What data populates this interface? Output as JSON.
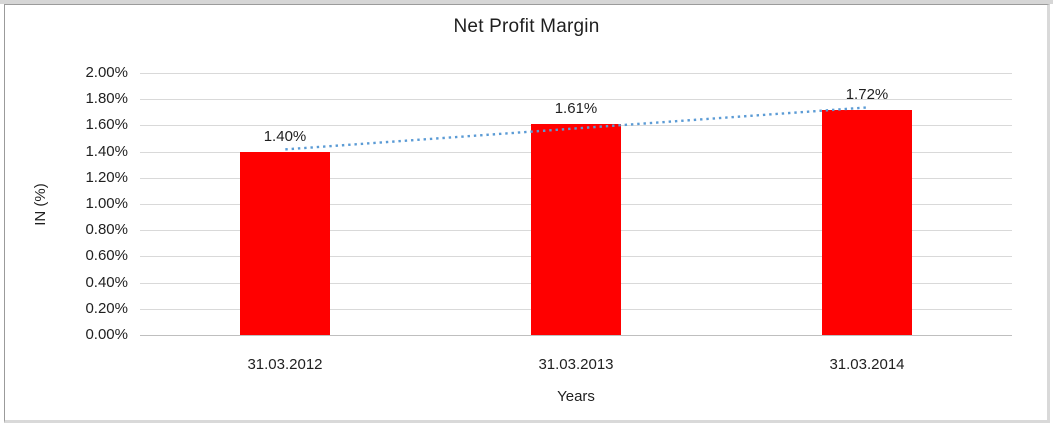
{
  "chart_data": {
    "type": "bar",
    "title": "Net Profit Margin",
    "categories": [
      "31.03.2012",
      "31.03.2013",
      "31.03.2014"
    ],
    "series": [
      {
        "name": "Net Profit Margin",
        "values": [
          1.4,
          1.61,
          1.72
        ]
      }
    ],
    "data_labels": [
      "1.40%",
      "1.61%",
      "1.72%"
    ],
    "xlabel": "Years",
    "ylabel": "IN (%)",
    "ylim": [
      0,
      2.0
    ],
    "ytick_step": 0.2,
    "ytick_labels": [
      "2.00%",
      "1.80%",
      "1.60%",
      "1.40%",
      "1.20%",
      "1.00%",
      "0.80%",
      "0.60%",
      "0.40%",
      "0.20%",
      "0.00%"
    ],
    "grid": true,
    "legend": "none",
    "trendline": {
      "type": "linear",
      "style": "dotted",
      "start_value": 1.417,
      "end_value": 1.737
    },
    "colors": {
      "bar": "#FF0000",
      "trendline": "#5B9BD5",
      "gridline": "#D9D9D9",
      "axis_line": "#BFBFBF",
      "text": "#1F1F1F"
    }
  }
}
